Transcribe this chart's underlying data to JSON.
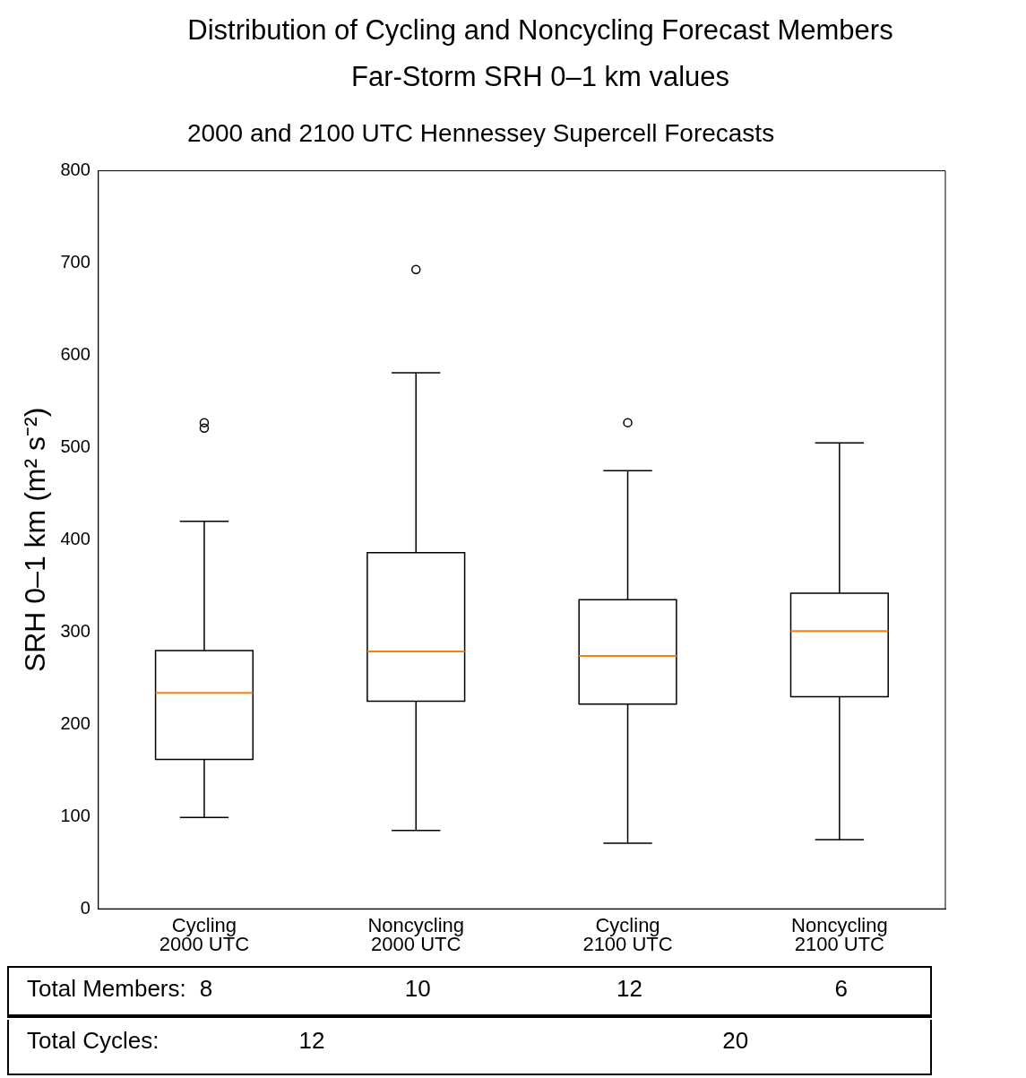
{
  "chart_data": {
    "type": "box",
    "title": "Distribution of Cycling and Noncycling Forecast Members Far-Storm SRH 0–1 km values",
    "subtitle": "2000 and 2100 UTC Hennessey Supercell Forecasts",
    "ylabel": "SRH 0–1 km (m² s⁻²)",
    "categories": [
      "Cycling 2000 UTC",
      "Noncycling 2000 UTC",
      "Cycling 2100 UTC",
      "Noncycling 2100 UTC"
    ],
    "boxes": [
      {
        "low": 99,
        "q1": 162,
        "median": 234,
        "q3": 280,
        "high": 420,
        "outliers": [
          527,
          521
        ]
      },
      {
        "low": 85,
        "q1": 225,
        "median": 279,
        "q3": 386,
        "high": 581,
        "outliers": [
          693
        ]
      },
      {
        "low": 71,
        "q1": 222,
        "median": 274,
        "q3": 335,
        "high": 475,
        "outliers": [
          527
        ]
      },
      {
        "low": 75,
        "q1": 230,
        "median": 301,
        "q3": 342,
        "high": 505
      }
    ],
    "color": "#000000",
    "ylim": [
      0,
      800
    ],
    "yticks": [
      0,
      100,
      200,
      300,
      400,
      500,
      600,
      700,
      800
    ],
    "grid": false,
    "legend": false,
    "annotations": [
      "Total Members:",
      "8",
      "10",
      "12",
      "6",
      "Total Cycles:",
      "12",
      "20"
    ]
  }
}
